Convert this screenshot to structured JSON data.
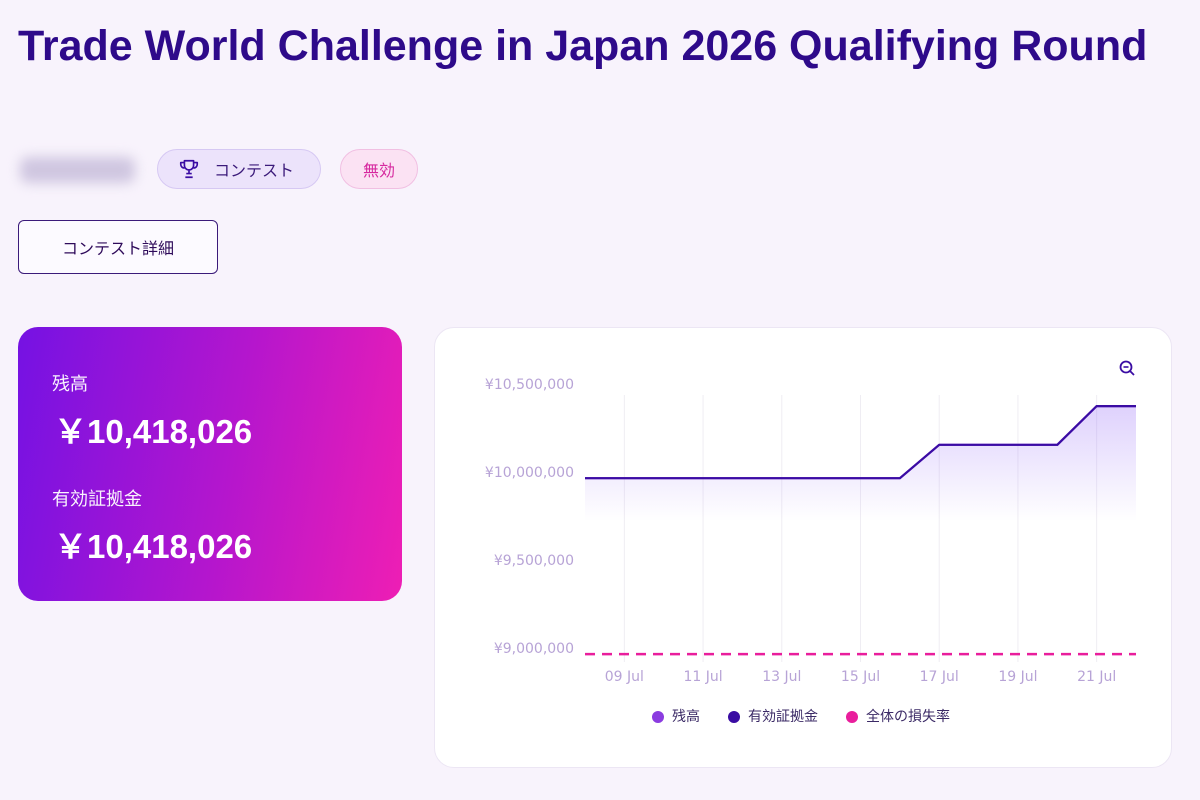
{
  "header": {
    "title": "Trade World Challenge in Japan 2026 Qualifying Round",
    "badges": [
      "コンテスト",
      "無効"
    ],
    "button": "コンテスト詳細"
  },
  "summary": [
    {
      "label": "残高",
      "value": "￥10,418,026"
    },
    {
      "label": "有効証拠金",
      "value": "￥10,418,026"
    }
  ],
  "chart_data": {
    "type": "line",
    "categories": [
      null,
      "09 Jul",
      null,
      "11 Jul",
      null,
      "13 Jul",
      null,
      "15 Jul",
      null,
      "17 Jul",
      null,
      "19 Jul",
      null,
      "21 Jul",
      null
    ],
    "series": [
      {
        "name": "残高",
        "color": "#8b3ce0",
        "values": [
          9970000,
          9970000,
          9970000,
          9970000,
          9970000,
          9970000,
          9970000,
          9970000,
          9970000,
          10160000,
          10160000,
          10160000,
          10160000,
          10380000,
          10380000
        ]
      },
      {
        "name": "有効証拠金",
        "color": "#3a0ca3",
        "values": [
          9970000,
          9970000,
          9970000,
          9970000,
          9970000,
          9970000,
          9970000,
          9970000,
          9970000,
          10160000,
          10160000,
          10160000,
          10160000,
          10380000,
          10380000
        ]
      },
      {
        "name": "全体の損失率",
        "color": "#e91e9c",
        "dashed": true,
        "values": [
          8970000,
          8970000,
          8970000,
          8970000,
          8970000,
          8970000,
          8970000,
          8970000,
          8970000,
          8970000,
          8970000,
          8970000,
          8970000,
          8970000,
          8970000
        ]
      }
    ],
    "ylim": [
      8925000,
      10500000
    ],
    "yticks": [
      {
        "value": 9000000,
        "label": "¥9,000,000"
      },
      {
        "value": 9500000,
        "label": "¥9,500,000"
      },
      {
        "value": 10000000,
        "label": "¥10,000,000"
      },
      {
        "value": 10500000,
        "label": "¥10,500,000"
      }
    ],
    "grid": "x",
    "legend": "bottom"
  }
}
